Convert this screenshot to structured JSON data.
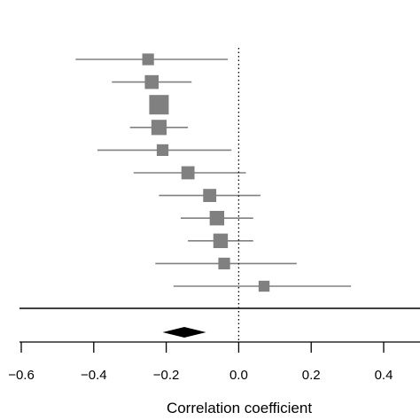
{
  "chart_data": {
    "type": "forest",
    "title": "",
    "xlabel": "Correlation coefficient",
    "ylabel": "",
    "xlim": [
      -0.6,
      0.5
    ],
    "xticks": [
      -0.6,
      -0.4,
      -0.2,
      0.0,
      0.2,
      0.4
    ],
    "xtick_labels": [
      "−0.6",
      "−0.4",
      "−0.2",
      "0.0",
      "0.2",
      "0.4"
    ],
    "reference_line": 0.0,
    "colors": {
      "study": "#808080",
      "summary": "#000000"
    },
    "studies": [
      {
        "estimate": -0.25,
        "lower": -0.45,
        "upper": -0.03,
        "weight": 0.45
      },
      {
        "estimate": -0.24,
        "lower": -0.35,
        "upper": -0.13,
        "weight": 0.6
      },
      {
        "estimate": -0.22,
        "lower": -0.22,
        "upper": -0.22,
        "weight": 1.0
      },
      {
        "estimate": -0.22,
        "lower": -0.3,
        "upper": -0.14,
        "weight": 0.7
      },
      {
        "estimate": -0.21,
        "lower": -0.39,
        "upper": -0.02,
        "weight": 0.45
      },
      {
        "estimate": -0.14,
        "lower": -0.29,
        "upper": 0.02,
        "weight": 0.55
      },
      {
        "estimate": -0.08,
        "lower": -0.22,
        "upper": 0.06,
        "weight": 0.55
      },
      {
        "estimate": -0.06,
        "lower": -0.16,
        "upper": 0.04,
        "weight": 0.65
      },
      {
        "estimate": -0.05,
        "lower": -0.14,
        "upper": 0.04,
        "weight": 0.65
      },
      {
        "estimate": -0.04,
        "lower": -0.23,
        "upper": 0.16,
        "weight": 0.45
      },
      {
        "estimate": 0.07,
        "lower": -0.18,
        "upper": 0.31,
        "weight": 0.4
      }
    ],
    "summary": {
      "estimate": -0.15,
      "lower": -0.21,
      "upper": -0.09
    }
  }
}
